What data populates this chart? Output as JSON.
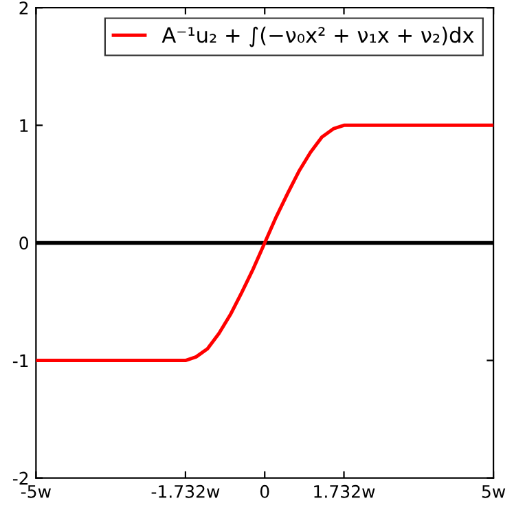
{
  "chart_data": {
    "type": "line",
    "x": [
      -5,
      -1.732,
      -1.5,
      -1.25,
      -1,
      -0.75,
      -0.5,
      -0.25,
      0,
      0.25,
      0.5,
      0.75,
      1,
      1.25,
      1.5,
      1.732,
      5
    ],
    "series": [
      {
        "name": "A⁻¹u₂ + ∫(−ν₀x² + ν₁x + ν₂)dx",
        "color": "#ff0000",
        "values": [
          -1,
          -1,
          -0.97,
          -0.9,
          -0.77,
          -0.61,
          -0.42,
          -0.22,
          0,
          0.22,
          0.42,
          0.61,
          0.77,
          0.9,
          0.97,
          1,
          1
        ]
      }
    ],
    "xlim": [
      -5,
      5
    ],
    "ylim": [
      -2,
      2
    ],
    "xticks": [
      {
        "value": -5,
        "label": "-5w"
      },
      {
        "value": -1.732,
        "label": "-1.732w"
      },
      0,
      {
        "value": 1.732,
        "label": "1.732w"
      },
      {
        "value": 5,
        "label": "5w"
      }
    ],
    "yticks": [
      {
        "value": -2,
        "label": "-2"
      },
      {
        "value": -1,
        "label": "-1"
      },
      0,
      1,
      2
    ],
    "ref_lines": [
      {
        "axis": "y",
        "value": 0,
        "color": "#000000"
      }
    ],
    "legend": "top right",
    "grid": false,
    "marker": "none",
    "line_style": "solid"
  }
}
